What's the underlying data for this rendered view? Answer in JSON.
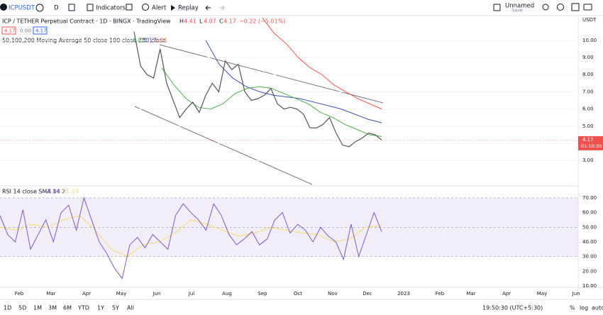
{
  "toolbar": {
    "symbol": "ICPUSDT",
    "interval": "D",
    "indicators": "Indicators",
    "alert": "Alert",
    "replay": "Replay",
    "layout_name": "Unnamed",
    "save": "Save"
  },
  "legend": {
    "title": "ICP / TETHER Perpetual Contract · 1D · BINGX · TradingView",
    "ohlc": [
      {
        "label": "H",
        "value": "4.41"
      },
      {
        "label": "L",
        "value": "4.07"
      },
      {
        "label": "C",
        "value": "4.17"
      }
    ],
    "change": "−0.22 (−5.01%)",
    "boxes": [
      "4.17",
      "0.00",
      "4.17"
    ],
    "ma_title": "50,100,200 Moving Average 50 close 100 close 200 close",
    "ma_values": [
      4.42,
      5.17,
      5.96
    ]
  },
  "price_chart": {
    "currency": "USDT",
    "ylim": [
      1.52,
      11.44
    ],
    "yticks": [
      {
        "value": 3,
        "label": "3.00"
      },
      {
        "value": 4,
        "label": "4.00"
      },
      {
        "value": 5,
        "label": "5.00"
      },
      {
        "value": 6,
        "label": "6.00"
      },
      {
        "value": 7,
        "label": "7.00"
      },
      {
        "value": 8,
        "label": "8.00"
      },
      {
        "value": 9,
        "label": "9.00"
      },
      {
        "value": 10,
        "label": "10.00"
      }
    ],
    "close": [
      10.5,
      8.5,
      8.0,
      7.8,
      9.5,
      7.5,
      6.5,
      5.5,
      6.0,
      6.4,
      5.8,
      6.8,
      7.5,
      7.0,
      8.8,
      8.3,
      8.6,
      7.0,
      6.5,
      6.6,
      6.8,
      7.2,
      6.3,
      6.0,
      6.1,
      6.0,
      5.7,
      4.9,
      4.9,
      5.1,
      5.5,
      4.6,
      3.9,
      3.8,
      4.1,
      4.3,
      4.6,
      4.5,
      4.2
    ],
    "ma50": [
      8.4,
      7.4,
      6.6,
      6.1,
      6.0,
      6.3,
      6.9,
      7.2,
      7.3,
      7.2,
      6.9,
      6.6,
      6.3,
      5.8,
      5.5,
      5.1,
      4.8,
      4.5,
      4.4
    ],
    "ma100": [
      10.0,
      8.6,
      7.8,
      7.3,
      7.0,
      6.8,
      6.7,
      6.6,
      6.4,
      6.2,
      6.0,
      5.7,
      5.4,
      5.2
    ],
    "ma200": [
      11.3,
      10.4,
      9.8,
      9.0,
      8.4,
      8.0,
      7.4,
      7.0,
      6.6,
      6.3,
      6.0
    ],
    "last_price": {
      "value": 4.17,
      "label": "4.17"
    },
    "countdown": "01:10:30"
  },
  "rsi": {
    "title": "RSI 14 close SMA 14 2",
    "value": "47.04",
    "sma_value": "51.19",
    "ylim": [
      9.0,
      78.2
    ],
    "yticks": [
      {
        "value": 10,
        "label": "10.00"
      },
      {
        "value": 20,
        "label": "20.00"
      },
      {
        "value": 30,
        "label": "30.00"
      },
      {
        "value": 40,
        "label": "40.00"
      },
      {
        "value": 50,
        "label": "50.00"
      },
      {
        "value": 60,
        "label": "60.00"
      },
      {
        "value": 70,
        "label": "70.00"
      }
    ],
    "values": [
      58,
      45,
      40,
      62,
      35,
      45,
      55,
      40,
      60,
      65,
      48,
      70,
      55,
      40,
      32,
      22,
      15,
      38,
      43,
      36,
      45,
      40,
      35,
      58,
      66,
      60,
      55,
      48,
      66,
      58,
      45,
      38,
      42,
      47,
      38,
      42,
      55,
      60,
      46,
      52,
      48,
      40,
      50,
      44,
      40,
      28,
      52,
      30,
      45,
      60,
      47
    ],
    "sma": [
      50,
      48,
      52,
      50,
      55,
      58,
      48,
      35,
      30,
      38,
      40,
      46,
      55,
      52,
      48,
      44,
      46,
      50,
      48,
      46,
      45,
      40,
      42,
      50,
      51
    ]
  },
  "time_axis": [
    "Feb",
    "Mar",
    "Apr",
    "May",
    "Jun",
    "Jul",
    "Aug",
    "Sep",
    "Oct",
    "Nov",
    "Dec",
    "2023",
    "Feb",
    "Mar",
    "Apr",
    "May",
    "Jun"
  ],
  "bottom_bar": {
    "ranges": [
      "1D",
      "5D",
      "1M",
      "3M",
      "6M",
      "YTD",
      "1Y",
      "5Y",
      "All"
    ],
    "clock": "19:50:30 (UTC+5:30)",
    "options": [
      "%",
      "log",
      "auto"
    ]
  }
}
